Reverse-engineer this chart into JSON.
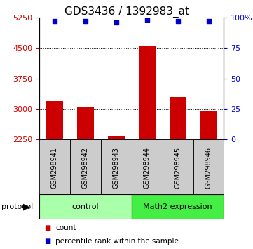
{
  "title": "GDS3436 / 1392983_at",
  "samples": [
    "GSM298941",
    "GSM298942",
    "GSM298943",
    "GSM298944",
    "GSM298945",
    "GSM298946"
  ],
  "counts": [
    3200,
    3050,
    2320,
    4530,
    3300,
    2950
  ],
  "percentile_ranks": [
    97,
    97,
    96,
    98,
    97,
    97
  ],
  "ylim_left": [
    2250,
    5250
  ],
  "ylim_right": [
    0,
    100
  ],
  "yticks_left": [
    2250,
    3000,
    3750,
    4500,
    5250
  ],
  "yticks_right": [
    0,
    25,
    50,
    75,
    100
  ],
  "ytick_labels_right": [
    "0",
    "25",
    "50",
    "75",
    "100%"
  ],
  "grid_values": [
    3000,
    3750,
    4500
  ],
  "bar_color": "#cc0000",
  "dot_color": "#0000cc",
  "bar_width": 0.55,
  "groups": [
    {
      "label": "control",
      "samples": [
        0,
        1,
        2
      ],
      "color": "#aaffaa"
    },
    {
      "label": "Math2 expression",
      "samples": [
        3,
        4,
        5
      ],
      "color": "#44ee44"
    }
  ],
  "protocol_label": "protocol",
  "legend_count_label": "count",
  "legend_pct_label": "percentile rank within the sample",
  "bg_plot": "#ffffff",
  "sample_box_color": "#cccccc",
  "left_tick_color": "#cc0000",
  "right_tick_color": "#0000cc",
  "title_fontsize": 11,
  "axis_fontsize": 8,
  "sample_label_fontsize": 7
}
